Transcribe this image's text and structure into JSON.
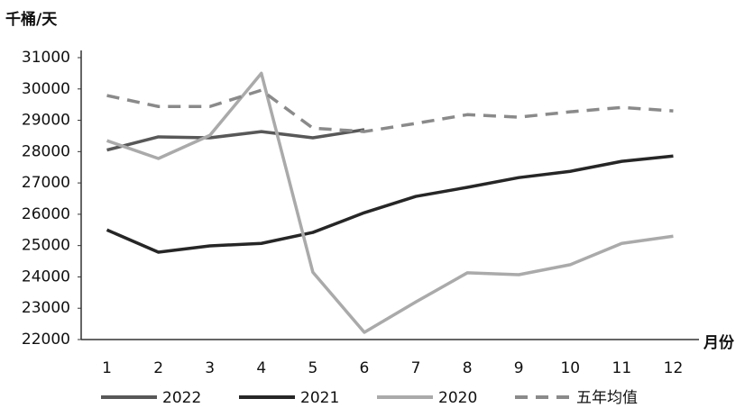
{
  "chart_data": {
    "type": "line",
    "y_label": "千桶/天",
    "x_label": "月份",
    "categories": [
      "1",
      "2",
      "3",
      "4",
      "5",
      "6",
      "7",
      "8",
      "9",
      "10",
      "11",
      "12"
    ],
    "ylim": [
      22000,
      31000
    ],
    "yticks": [
      22000,
      23000,
      24000,
      25000,
      26000,
      27000,
      28000,
      29000,
      30000,
      31000
    ],
    "series": [
      {
        "name": "2022",
        "color": "#585858",
        "dash": false,
        "values": [
          28050,
          28470,
          28440,
          28640,
          28440,
          28700,
          null,
          null,
          null,
          null,
          null,
          null
        ]
      },
      {
        "name": "2021",
        "color": "#262626",
        "dash": false,
        "values": [
          25500,
          24790,
          24990,
          25070,
          25420,
          26050,
          26570,
          26860,
          27170,
          27370,
          27690,
          27860
        ]
      },
      {
        "name": "2020",
        "color": "#aaaaaa",
        "dash": false,
        "values": [
          28350,
          27780,
          28520,
          30500,
          24150,
          22230,
          23200,
          24130,
          24070,
          24390,
          25070,
          25300
        ]
      },
      {
        "name": "五年均值",
        "color": "#8a8a8a",
        "dash": true,
        "values": [
          29790,
          29440,
          29440,
          29960,
          28750,
          28640,
          28900,
          29180,
          29100,
          29270,
          29410,
          29300
        ]
      }
    ]
  }
}
